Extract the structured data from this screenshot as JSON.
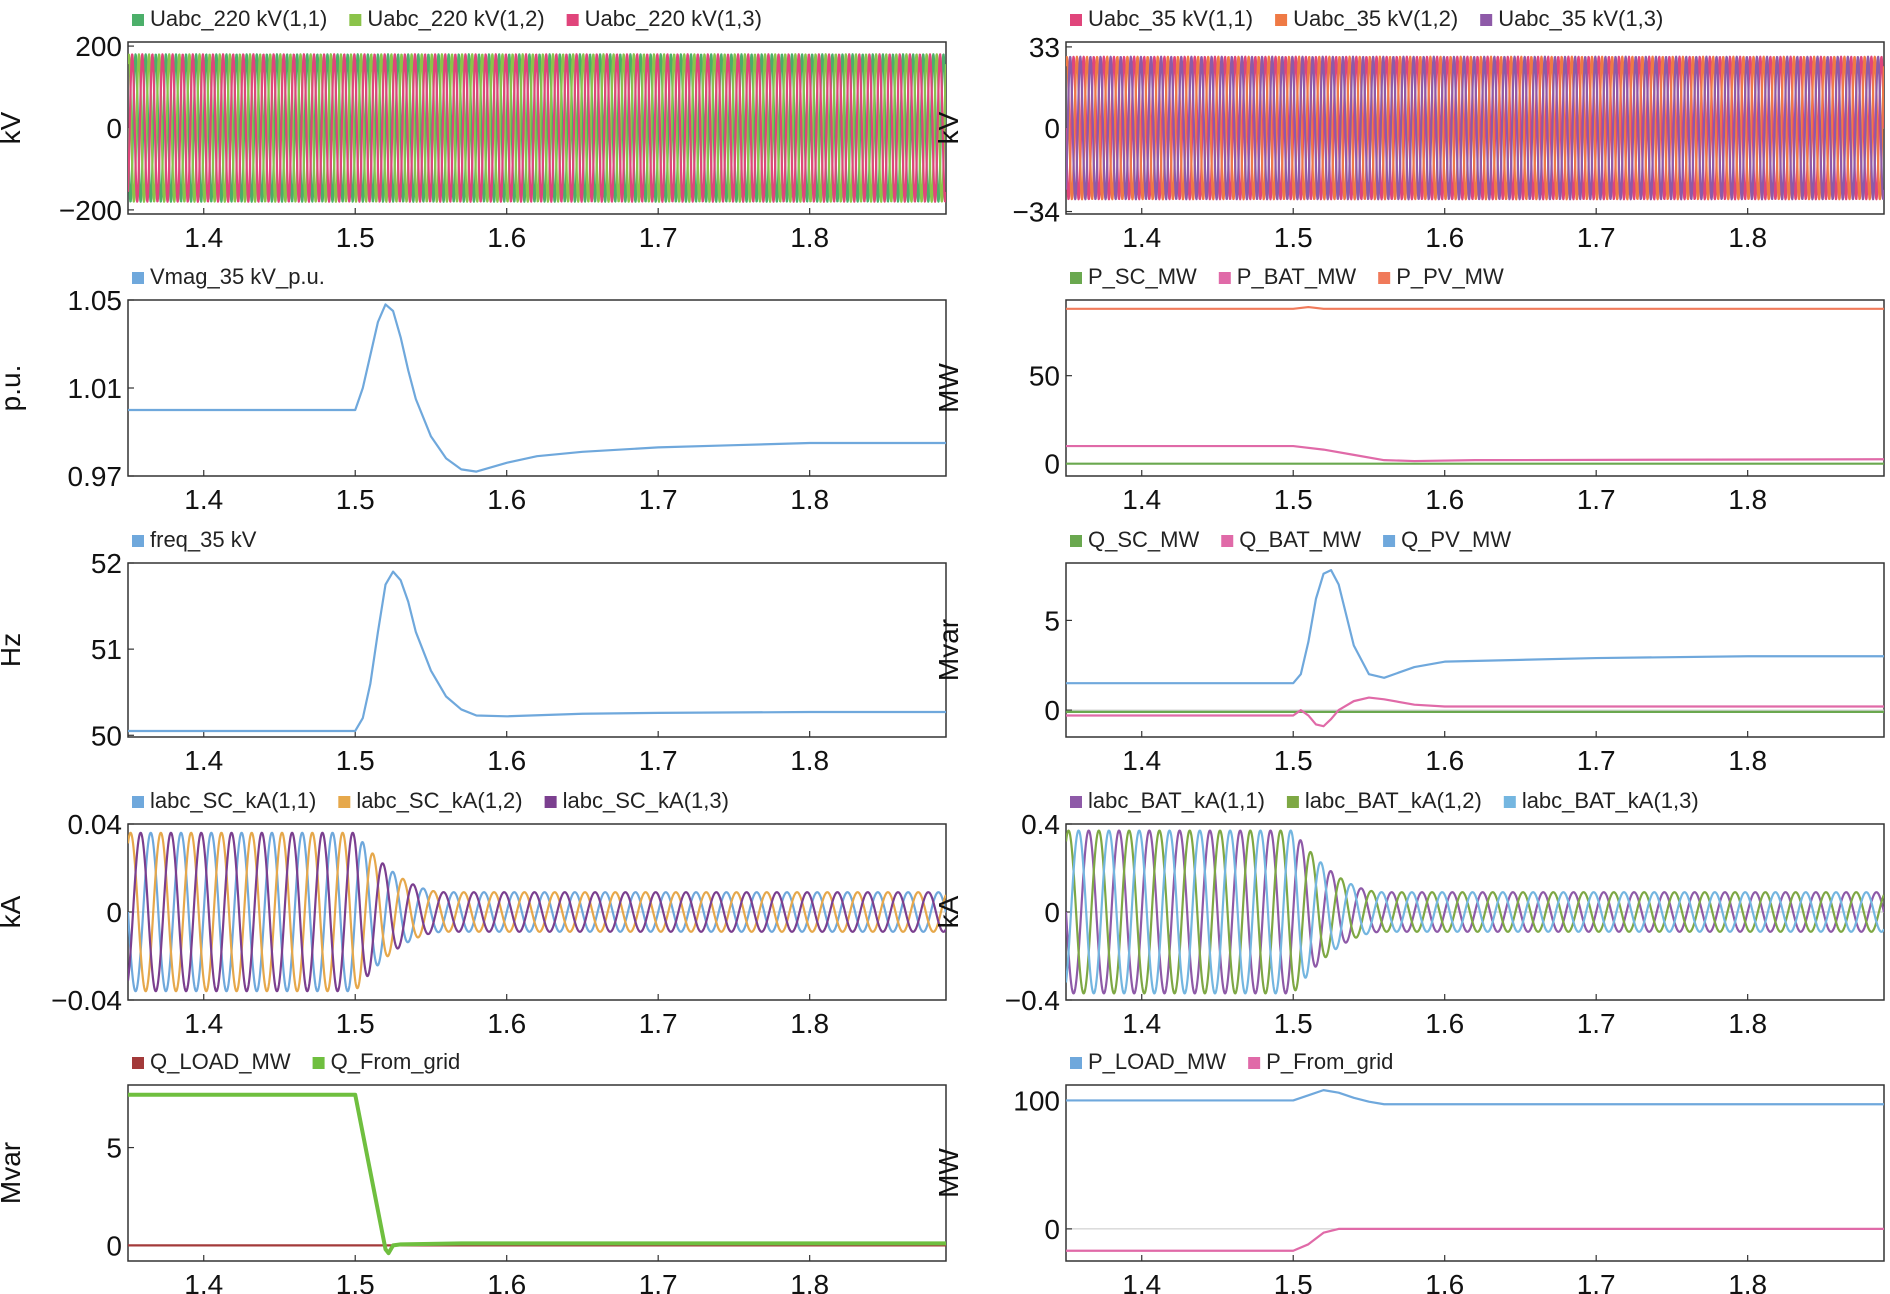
{
  "chart_data": [
    {
      "id": "p1",
      "type": "line",
      "ylabel": "kV",
      "xlim": [
        1.35,
        1.89
      ],
      "ylim": [
        -210,
        210
      ],
      "yticks": [
        {
          "v": 200,
          "t": "200"
        },
        {
          "v": 0,
          "t": "0"
        },
        {
          "v": -200,
          "t": "−200"
        }
      ],
      "xticks": [
        "1.4",
        "1.5",
        "1.6",
        "1.7",
        "1.8"
      ],
      "series": [
        {
          "name": "Uabc_220 kV(1,1)",
          "color": "#4caf6a"
        },
        {
          "name": "Uabc_220 kV(1,2)",
          "color": "#8bc34a"
        },
        {
          "name": "Uabc_220 kV(1,3)",
          "color": "#e0457b"
        }
      ],
      "signal": {
        "kind": "sine3",
        "freq": 150,
        "amp": 180
      }
    },
    {
      "id": "p2",
      "type": "line",
      "ylabel": "kV",
      "xlim": [
        1.35,
        1.89
      ],
      "ylim": [
        -35,
        35
      ],
      "yticks": [
        {
          "v": 33,
          "t": "33"
        },
        {
          "v": 0,
          "t": "0"
        },
        {
          "v": -34,
          "t": "−34"
        }
      ],
      "xticks": [
        "1.4",
        "1.5",
        "1.6",
        "1.7",
        "1.8"
      ],
      "series": [
        {
          "name": "Uabc_35 kV(1,1)",
          "color": "#e0457b"
        },
        {
          "name": "Uabc_35 kV(1,2)",
          "color": "#ef7a45"
        },
        {
          "name": "Uabc_35 kV(1,3)",
          "color": "#8e5aa8"
        }
      ],
      "signal": {
        "kind": "sine3",
        "freq": 150,
        "amp": 29
      }
    },
    {
      "id": "p3",
      "type": "line",
      "ylabel": "p.u.",
      "xlim": [
        1.35,
        1.89
      ],
      "ylim": [
        0.97,
        1.05
      ],
      "yticks": [
        {
          "v": 1.05,
          "t": "1.05"
        },
        {
          "v": 1.01,
          "t": "1.01"
        },
        {
          "v": 0.97,
          "t": "0.97"
        }
      ],
      "xticks": [
        "1.4",
        "1.5",
        "1.6",
        "1.7",
        "1.8"
      ],
      "series": [
        {
          "name": "Vmag_35 kV_p.u.",
          "color": "#6fa8dc",
          "x": [
            1.35,
            1.45,
            1.5,
            1.505,
            1.51,
            1.515,
            1.52,
            1.525,
            1.53,
            1.535,
            1.54,
            1.55,
            1.56,
            1.57,
            1.58,
            1.6,
            1.62,
            1.65,
            1.7,
            1.75,
            1.8,
            1.85,
            1.89
          ],
          "y": [
            1.0,
            1.0,
            1.0,
            1.01,
            1.025,
            1.04,
            1.048,
            1.045,
            1.033,
            1.018,
            1.005,
            0.988,
            0.978,
            0.973,
            0.972,
            0.976,
            0.979,
            0.981,
            0.983,
            0.984,
            0.985,
            0.985,
            0.985
          ]
        }
      ]
    },
    {
      "id": "p4",
      "type": "line",
      "ylabel": "MW",
      "xlim": [
        1.35,
        1.89
      ],
      "ylim": [
        -7,
        93
      ],
      "yticks": [
        {
          "v": 50,
          "t": "50"
        },
        {
          "v": 0,
          "t": "0"
        }
      ],
      "xticks": [
        "1.4",
        "1.5",
        "1.6",
        "1.7",
        "1.8"
      ],
      "series": [
        {
          "name": "P_SC_MW",
          "color": "#6aa84f",
          "x": [
            1.35,
            1.89
          ],
          "y": [
            0,
            0
          ]
        },
        {
          "name": "P_BAT_MW",
          "color": "#e06aa8",
          "x": [
            1.35,
            1.5,
            1.52,
            1.54,
            1.56,
            1.58,
            1.62,
            1.89
          ],
          "y": [
            10,
            10,
            8,
            5,
            2,
            1.5,
            2,
            2.5
          ]
        },
        {
          "name": "P_PV_MW",
          "color": "#f07a5a",
          "x": [
            1.35,
            1.5,
            1.51,
            1.52,
            1.89
          ],
          "y": [
            88,
            88,
            89,
            88,
            88
          ]
        }
      ]
    },
    {
      "id": "p5",
      "type": "line",
      "ylabel": "Hz",
      "xlim": [
        1.35,
        1.89
      ],
      "ylim": [
        49.98,
        52.0
      ],
      "yticks": [
        {
          "v": 52,
          "t": "52"
        },
        {
          "v": 51,
          "t": "51"
        },
        {
          "v": 50,
          "t": "50"
        }
      ],
      "xticks": [
        "1.4",
        "1.5",
        "1.6",
        "1.7",
        "1.8"
      ],
      "series": [
        {
          "name": "freq_35 kV",
          "color": "#6fa8dc",
          "x": [
            1.35,
            1.5,
            1.505,
            1.51,
            1.515,
            1.52,
            1.525,
            1.53,
            1.535,
            1.54,
            1.55,
            1.56,
            1.57,
            1.58,
            1.6,
            1.65,
            1.7,
            1.8,
            1.89
          ],
          "y": [
            50.05,
            50.05,
            50.2,
            50.6,
            51.2,
            51.75,
            51.9,
            51.8,
            51.55,
            51.2,
            50.75,
            50.45,
            50.3,
            50.23,
            50.22,
            50.25,
            50.26,
            50.27,
            50.27
          ]
        }
      ]
    },
    {
      "id": "p6",
      "type": "line",
      "ylabel": "Mvar",
      "xlim": [
        1.35,
        1.89
      ],
      "ylim": [
        -1.5,
        8.2
      ],
      "yticks": [
        {
          "v": 5,
          "t": "5"
        },
        {
          "v": 0,
          "t": "0"
        }
      ],
      "xticks": [
        "1.4",
        "1.5",
        "1.6",
        "1.7",
        "1.8"
      ],
      "series": [
        {
          "name": "Q_SC_MW",
          "color": "#6aa84f",
          "x": [
            1.35,
            1.89
          ],
          "y": [
            -0.1,
            -0.1
          ]
        },
        {
          "name": "Q_BAT_MW",
          "color": "#e06aa8",
          "x": [
            1.35,
            1.5,
            1.505,
            1.51,
            1.515,
            1.52,
            1.525,
            1.53,
            1.54,
            1.55,
            1.56,
            1.58,
            1.6,
            1.89
          ],
          "y": [
            -0.3,
            -0.3,
            0.0,
            -0.3,
            -0.8,
            -0.9,
            -0.5,
            0.0,
            0.5,
            0.7,
            0.6,
            0.3,
            0.2,
            0.2
          ]
        },
        {
          "name": "Q_PV_MW",
          "color": "#6fa8dc",
          "x": [
            1.35,
            1.5,
            1.505,
            1.51,
            1.515,
            1.52,
            1.525,
            1.53,
            1.535,
            1.54,
            1.55,
            1.56,
            1.58,
            1.6,
            1.65,
            1.7,
            1.8,
            1.89
          ],
          "y": [
            1.5,
            1.5,
            2.0,
            3.8,
            6.2,
            7.6,
            7.8,
            7.0,
            5.3,
            3.6,
            2.0,
            1.8,
            2.4,
            2.7,
            2.8,
            2.9,
            3.0,
            3.0
          ]
        }
      ]
    },
    {
      "id": "p7",
      "type": "line",
      "ylabel": "kA",
      "xlim": [
        1.35,
        1.89
      ],
      "ylim": [
        -0.04,
        0.04
      ],
      "yticks": [
        {
          "v": 0.04,
          "t": "0.04"
        },
        {
          "v": 0,
          "t": "0"
        },
        {
          "v": -0.04,
          "t": "−0.04"
        }
      ],
      "xticks": [
        "1.4",
        "1.5",
        "1.6",
        "1.7",
        "1.8"
      ],
      "series": [
        {
          "name": "labc_SC_kA(1,1)",
          "color": "#6fa8dc"
        },
        {
          "name": "labc_SC_kA(1,2)",
          "color": "#e6a84b"
        },
        {
          "name": "labc_SC_kA(1,3)",
          "color": "#7b3f8f"
        }
      ],
      "signal": {
        "kind": "sine3_decay",
        "freq": 50,
        "amp": 0.036,
        "amp_after": 0.009,
        "t0": 1.5,
        "t1": 1.56
      }
    },
    {
      "id": "p8",
      "type": "line",
      "ylabel": "kA",
      "xlim": [
        1.35,
        1.89
      ],
      "ylim": [
        -0.4,
        0.4
      ],
      "yticks": [
        {
          "v": 0.4,
          "t": "0.4"
        },
        {
          "v": 0,
          "t": "0"
        },
        {
          "v": -0.4,
          "t": "−0.4"
        }
      ],
      "xticks": [
        "1.4",
        "1.5",
        "1.6",
        "1.7",
        "1.8"
      ],
      "series": [
        {
          "name": "labc_BAT_kA(1,1)",
          "color": "#8e5aa8"
        },
        {
          "name": "labc_BAT_kA(1,2)",
          "color": "#7ea844"
        },
        {
          "name": "labc_BAT_kA(1,3)",
          "color": "#74b6e0"
        }
      ],
      "signal": {
        "kind": "sine3_decay",
        "freq": 50,
        "amp": 0.37,
        "amp_after": 0.09,
        "t0": 1.5,
        "t1": 1.56
      }
    },
    {
      "id": "p9",
      "type": "line",
      "ylabel": "Mvar",
      "xlim": [
        1.35,
        1.89
      ],
      "ylim": [
        -0.8,
        8.2
      ],
      "yticks": [
        {
          "v": 5,
          "t": "5"
        },
        {
          "v": 0,
          "t": "0"
        }
      ],
      "xticks": [
        "1.4",
        "1.5",
        "1.6",
        "1.7",
        "1.8"
      ],
      "series": [
        {
          "name": "Q_LOAD_MW",
          "color": "#a33a3a",
          "x": [
            1.35,
            1.89
          ],
          "y": [
            0,
            0
          ]
        },
        {
          "name": "Q_From_grid",
          "color": "#6fbf3f",
          "x": [
            1.35,
            1.49,
            1.5,
            1.52,
            1.522,
            1.525,
            1.53,
            1.57,
            1.89
          ],
          "y": [
            7.7,
            7.7,
            7.7,
            -0.2,
            -0.4,
            0.0,
            0.05,
            0.1,
            0.1
          ]
        }
      ]
    },
    {
      "id": "p10",
      "type": "line",
      "ylabel": "MW",
      "xlim": [
        1.35,
        1.89
      ],
      "ylim": [
        -25,
        112
      ],
      "yticks": [
        {
          "v": 100,
          "t": "100"
        },
        {
          "v": 0,
          "t": "0"
        }
      ],
      "xticks": [
        "1.4",
        "1.5",
        "1.6",
        "1.7",
        "1.8"
      ],
      "series": [
        {
          "name": "P_LOAD_MW",
          "color": "#6fa8dc",
          "x": [
            1.35,
            1.5,
            1.51,
            1.52,
            1.53,
            1.54,
            1.55,
            1.56,
            1.6,
            1.89
          ],
          "y": [
            100,
            100,
            104,
            108,
            106,
            102,
            99,
            97,
            97,
            97
          ]
        },
        {
          "name": "P_From_grid",
          "color": "#e06aa8",
          "x": [
            1.35,
            1.5,
            1.51,
            1.52,
            1.53,
            1.6,
            1.89
          ],
          "y": [
            -17,
            -17,
            -12,
            -3,
            0,
            0,
            0
          ]
        }
      ]
    }
  ]
}
